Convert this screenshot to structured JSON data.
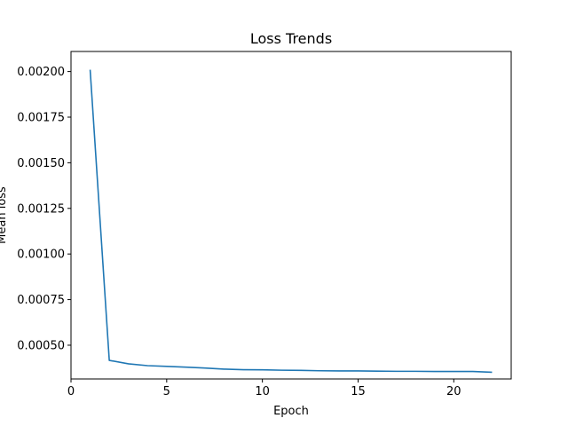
{
  "chart_data": {
    "type": "line",
    "title": "Loss Trends",
    "xlabel": "Epoch",
    "ylabel": "Mean loss",
    "xlim": [
      0,
      23
    ],
    "ylim": [
      0.000315,
      0.00211
    ],
    "xticks": [
      0,
      5,
      10,
      15,
      20
    ],
    "yticks": [
      0.0005,
      0.00075,
      0.001,
      0.00125,
      0.0015,
      0.00175,
      0.002
    ],
    "ytick_labels": [
      "0.00050",
      "0.00075",
      "0.00100",
      "0.00125",
      "0.00150",
      "0.00175",
      "0.00200"
    ],
    "grid": false,
    "line_color": "#1f77b4",
    "series": [
      {
        "name": "Mean loss",
        "x": [
          1,
          2,
          3,
          4,
          5,
          6,
          7,
          8,
          9,
          10,
          11,
          12,
          13,
          14,
          15,
          16,
          17,
          18,
          19,
          20,
          21,
          22
        ],
        "y": [
          0.00201,
          0.000417,
          0.000398,
          0.000388,
          0.000384,
          0.00038,
          0.000375,
          0.000369,
          0.000366,
          0.000365,
          0.000363,
          0.000362,
          0.00036,
          0.000359,
          0.000359,
          0.000358,
          0.000357,
          0.000357,
          0.000356,
          0.000356,
          0.000356,
          0.000352
        ]
      }
    ]
  }
}
